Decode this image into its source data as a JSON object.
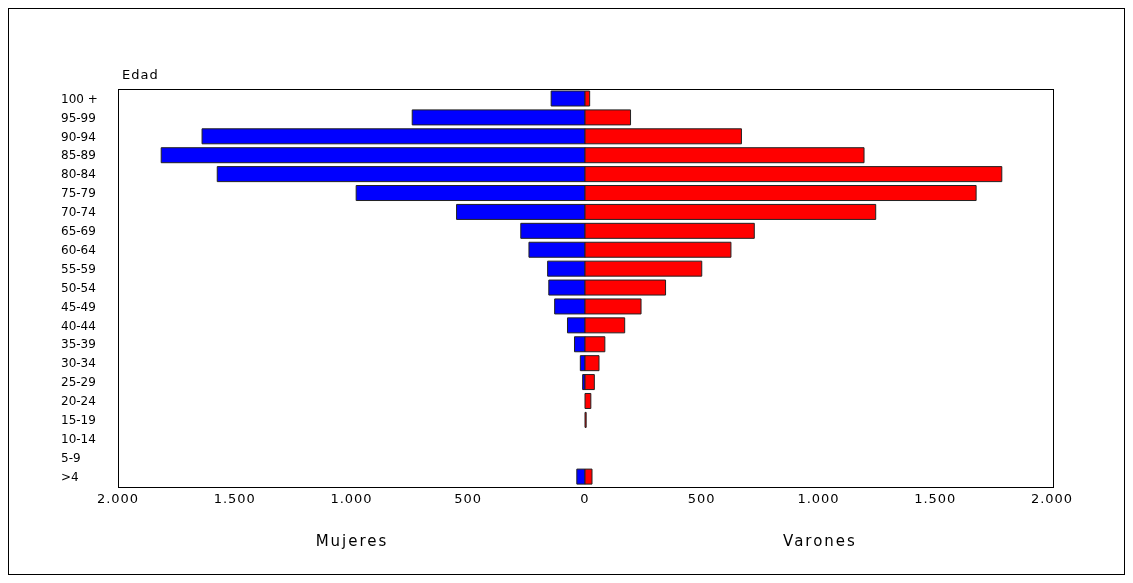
{
  "chart_data": {
    "type": "bar",
    "orientation": "horizontal",
    "stacked": true,
    "ylabel": "Edad",
    "categories": [
      "100 +",
      "95-99",
      "90-94",
      "85-89",
      "80-84",
      "75-79",
      "70-74",
      "65-69",
      "60-64",
      "55-59",
      "50-54",
      "45-49",
      "40-44",
      "35-39",
      "30-34",
      "25-29",
      "20-24",
      "15-19",
      "10-14",
      "5-9",
      ">4"
    ],
    "series": [
      {
        "color": "#0000ff",
        "values": [
          -145,
          -740,
          -1640,
          -1815,
          -1575,
          -980,
          -550,
          -275,
          -240,
          -160,
          -155,
          -130,
          -75,
          -45,
          -20,
          -10,
          0,
          0,
          0,
          0,
          -35
        ]
      },
      {
        "color": "#ff0000",
        "values": [
          20,
          195,
          670,
          1195,
          1785,
          1675,
          1245,
          725,
          625,
          500,
          345,
          240,
          170,
          85,
          60,
          40,
          25,
          5,
          0,
          0,
          30
        ]
      }
    ],
    "xlim": [
      -2000,
      2000
    ],
    "xticks": [
      {
        "value": -2000,
        "label": "2.000"
      },
      {
        "value": -1500,
        "label": "1.500"
      },
      {
        "value": -1000,
        "label": "1.000"
      },
      {
        "value": -500,
        "label": "500"
      },
      0,
      500,
      {
        "value": 1000,
        "label": "1.000"
      },
      {
        "value": 1500,
        "label": "1.500"
      },
      {
        "value": 2000,
        "label": "2.000"
      }
    ],
    "annotations": [
      "Mujeres",
      "Varones"
    ]
  }
}
